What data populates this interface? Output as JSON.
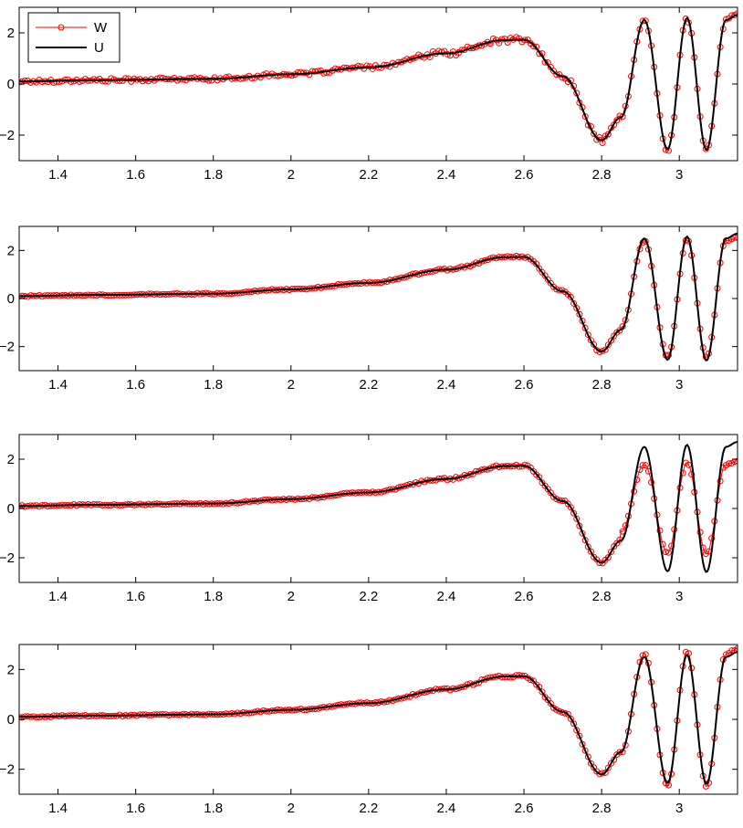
{
  "chart_data": [
    {
      "type": "line",
      "xlim": [
        1.3,
        3.15
      ],
      "ylim": [
        -3,
        3
      ],
      "xticks": [
        "1.4",
        "1.6",
        "1.8",
        "2",
        "2.2",
        "2.4",
        "2.6",
        "2.8",
        "3"
      ],
      "yticks": [
        "−2",
        "0",
        "2"
      ],
      "grid": false,
      "legend": {
        "placement": "top-left",
        "entries": [
          "W",
          "U"
        ]
      },
      "series": [
        {
          "name": "W",
          "style": "red line with circle markers",
          "noise": 0.07,
          "amp_scale": 1.0
        },
        {
          "name": "U",
          "style": "black solid line"
        }
      ],
      "x": [
        1.3,
        1.5,
        1.8,
        2.0,
        2.2,
        2.4,
        2.55,
        2.6,
        2.7,
        2.8,
        2.85,
        2.91,
        2.97,
        3.02,
        3.07,
        3.12,
        3.15
      ],
      "y": [
        0.1,
        0.15,
        0.2,
        0.38,
        0.65,
        1.2,
        1.72,
        1.73,
        0.3,
        -2.2,
        -1.3,
        2.5,
        -2.55,
        2.58,
        -2.58,
        2.5,
        2.7
      ]
    },
    {
      "type": "line",
      "xlim": [
        1.3,
        3.15
      ],
      "ylim": [
        -3,
        3
      ],
      "xticks": [
        "1.4",
        "1.6",
        "1.8",
        "2",
        "2.2",
        "2.4",
        "2.6",
        "2.8",
        "3"
      ],
      "yticks": [
        "−2",
        "0",
        "2"
      ],
      "grid": false,
      "series": [
        {
          "name": "W",
          "style": "red line with circle markers",
          "noise": 0.03,
          "amp_scale": 0.95
        },
        {
          "name": "U",
          "style": "black solid line"
        }
      ],
      "x": [
        1.3,
        1.5,
        1.8,
        2.0,
        2.2,
        2.4,
        2.55,
        2.6,
        2.7,
        2.8,
        2.85,
        2.91,
        2.97,
        3.02,
        3.07,
        3.12,
        3.15
      ],
      "y": [
        0.1,
        0.15,
        0.2,
        0.38,
        0.65,
        1.2,
        1.72,
        1.73,
        0.3,
        -2.2,
        -1.3,
        2.5,
        -2.55,
        2.58,
        -2.58,
        2.5,
        2.7
      ]
    },
    {
      "type": "line",
      "xlim": [
        1.3,
        3.15
      ],
      "ylim": [
        -3,
        3
      ],
      "xticks": [
        "1.4",
        "1.6",
        "1.8",
        "2",
        "2.2",
        "2.4",
        "2.6",
        "2.8",
        "3"
      ],
      "yticks": [
        "−2",
        "0",
        "2"
      ],
      "grid": false,
      "series": [
        {
          "name": "W",
          "style": "red line with circle markers",
          "noise": 0.03,
          "amp_scale": 0.72
        },
        {
          "name": "U",
          "style": "black solid line"
        }
      ],
      "x": [
        1.3,
        1.5,
        1.8,
        2.0,
        2.2,
        2.4,
        2.55,
        2.6,
        2.7,
        2.8,
        2.85,
        2.91,
        2.97,
        3.02,
        3.07,
        3.12,
        3.15
      ],
      "y": [
        0.1,
        0.15,
        0.2,
        0.38,
        0.65,
        1.2,
        1.72,
        1.73,
        0.3,
        -2.2,
        -1.3,
        2.5,
        -2.55,
        2.58,
        -2.58,
        2.5,
        2.7
      ]
    },
    {
      "type": "line",
      "xlim": [
        1.3,
        3.15
      ],
      "ylim": [
        -3,
        3
      ],
      "xticks": [
        "1.4",
        "1.6",
        "1.8",
        "2",
        "2.2",
        "2.4",
        "2.6",
        "2.8",
        "3"
      ],
      "yticks": [
        "−2",
        "0",
        "2"
      ],
      "grid": false,
      "series": [
        {
          "name": "W",
          "style": "red line with circle markers",
          "noise": 0.03,
          "amp_scale": 1.05
        },
        {
          "name": "U",
          "style": "black solid line"
        }
      ],
      "x": [
        1.3,
        1.5,
        1.8,
        2.0,
        2.2,
        2.4,
        2.55,
        2.6,
        2.7,
        2.8,
        2.85,
        2.91,
        2.97,
        3.02,
        3.07,
        3.12,
        3.15
      ],
      "y": [
        0.1,
        0.15,
        0.2,
        0.38,
        0.65,
        1.2,
        1.72,
        1.73,
        0.3,
        -2.2,
        -1.3,
        2.5,
        -2.55,
        2.58,
        -2.58,
        2.5,
        2.7
      ]
    }
  ]
}
